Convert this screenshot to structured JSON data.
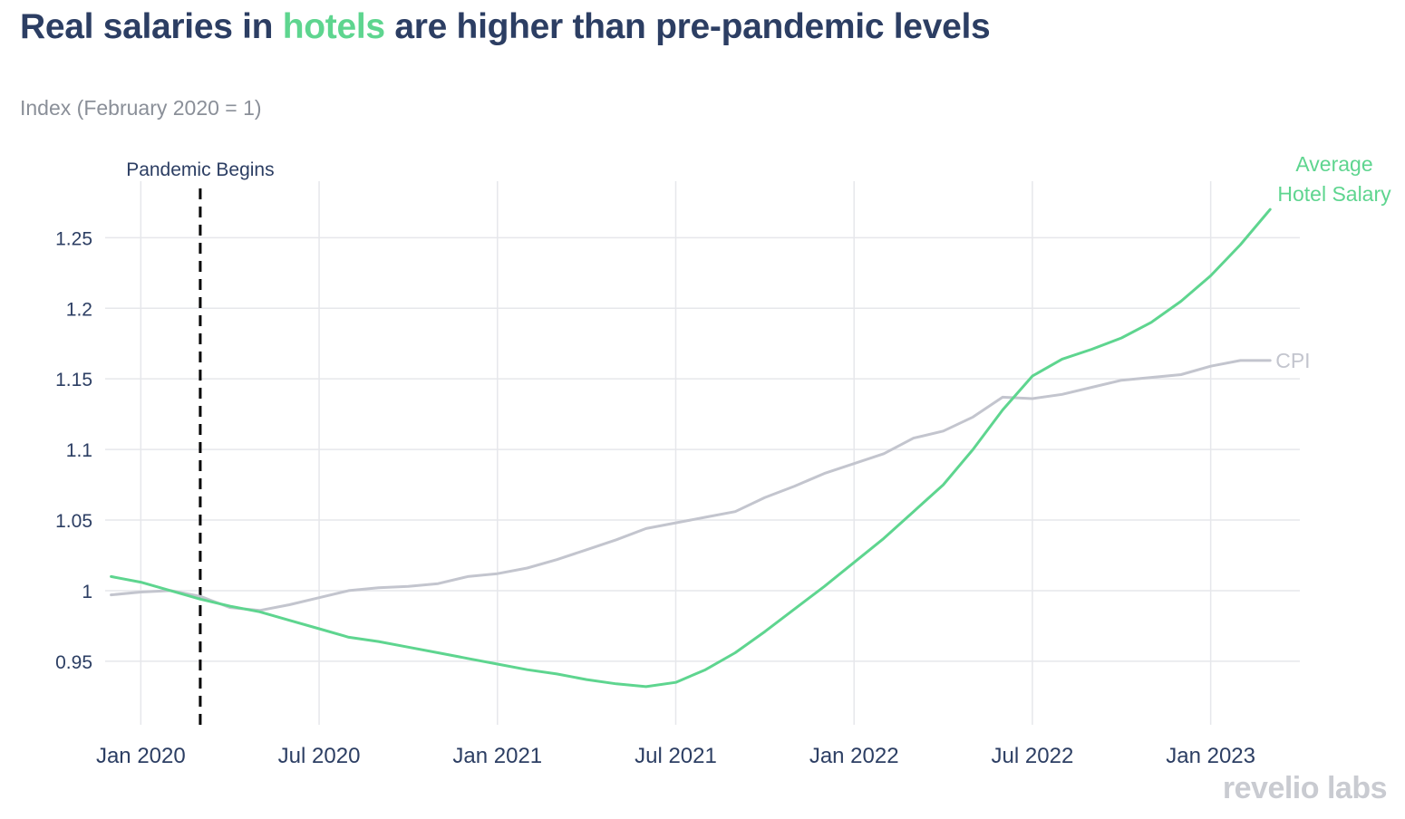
{
  "header": {
    "title_before": "Real salaries in ",
    "title_highlight": "hotels",
    "title_after": " are higher than pre-pandemic levels",
    "subtitle": "Index (February 2020 = 1)"
  },
  "brand": {
    "text": "revelio labs"
  },
  "colors": {
    "title": "#2c3e63",
    "hotel": "#5ed58f",
    "cpi": "#c3c5ce",
    "grid": "#e6e7eb",
    "axis_text": "#2c3e63",
    "annotation": "#000000"
  },
  "chart_data": {
    "type": "line",
    "title": "Real salaries in hotels are higher than pre-pandemic levels",
    "ylabel": "Index (February 2020 = 1)",
    "xlabel": "",
    "x_unit": "months since Jan 2020",
    "xlim": [
      -1.2,
      39
    ],
    "ylim": [
      0.905,
      1.29
    ],
    "grid": true,
    "x_ticks": [
      {
        "value": 0,
        "label": "Jan 2020"
      },
      {
        "value": 6,
        "label": "Jul 2020"
      },
      {
        "value": 12,
        "label": "Jan 2021"
      },
      {
        "value": 18,
        "label": "Jul 2021"
      },
      {
        "value": 24,
        "label": "Jan 2022"
      },
      {
        "value": 30,
        "label": "Jul 2022"
      },
      {
        "value": 36,
        "label": "Jan 2023"
      }
    ],
    "y_ticks": [
      {
        "value": 0.95,
        "label": "0.95"
      },
      {
        "value": 1.0,
        "label": "1"
      },
      {
        "value": 1.05,
        "label": "1.05"
      },
      {
        "value": 1.1,
        "label": "1.1"
      },
      {
        "value": 1.15,
        "label": "1.15"
      },
      {
        "value": 1.2,
        "label": "1.2"
      },
      {
        "value": 1.25,
        "label": "1.25"
      }
    ],
    "annotation": {
      "x": 2,
      "label": "Pandemic Begins"
    },
    "series": [
      {
        "name": "Average Hotel Salary",
        "label_lines": [
          "Average",
          "Hotel Salary"
        ],
        "color_key": "hotel",
        "points": [
          [
            -1,
            1.01
          ],
          [
            0,
            1.006
          ],
          [
            1,
            1.0
          ],
          [
            2,
            0.994
          ],
          [
            3,
            0.989
          ],
          [
            4,
            0.985
          ],
          [
            5,
            0.979
          ],
          [
            6,
            0.973
          ],
          [
            7,
            0.967
          ],
          [
            8,
            0.964
          ],
          [
            9,
            0.96
          ],
          [
            10,
            0.956
          ],
          [
            11,
            0.952
          ],
          [
            12,
            0.948
          ],
          [
            13,
            0.944
          ],
          [
            14,
            0.941
          ],
          [
            15,
            0.937
          ],
          [
            16,
            0.934
          ],
          [
            17,
            0.932
          ],
          [
            18,
            0.935
          ],
          [
            19,
            0.944
          ],
          [
            20,
            0.956
          ],
          [
            21,
            0.971
          ],
          [
            22,
            0.987
          ],
          [
            23,
            1.003
          ],
          [
            24,
            1.02
          ],
          [
            25,
            1.037
          ],
          [
            26,
            1.056
          ],
          [
            27,
            1.075
          ],
          [
            28,
            1.1
          ],
          [
            29,
            1.128
          ],
          [
            30,
            1.152
          ],
          [
            31,
            1.164
          ],
          [
            32,
            1.171
          ],
          [
            33,
            1.179
          ],
          [
            34,
            1.19
          ],
          [
            35,
            1.205
          ],
          [
            36,
            1.223
          ],
          [
            37,
            1.245
          ],
          [
            38,
            1.27
          ]
        ]
      },
      {
        "name": "CPI",
        "label_lines": [
          "CPI"
        ],
        "color_key": "cpi",
        "points": [
          [
            -1,
            0.997
          ],
          [
            0,
            0.999
          ],
          [
            1,
            1.0
          ],
          [
            2,
            0.996
          ],
          [
            3,
            0.988
          ],
          [
            4,
            0.986
          ],
          [
            5,
            0.99
          ],
          [
            6,
            0.995
          ],
          [
            7,
            1.0
          ],
          [
            8,
            1.002
          ],
          [
            9,
            1.003
          ],
          [
            10,
            1.005
          ],
          [
            11,
            1.01
          ],
          [
            12,
            1.012
          ],
          [
            13,
            1.016
          ],
          [
            14,
            1.022
          ],
          [
            15,
            1.029
          ],
          [
            16,
            1.036
          ],
          [
            17,
            1.044
          ],
          [
            18,
            1.048
          ],
          [
            19,
            1.052
          ],
          [
            20,
            1.056
          ],
          [
            21,
            1.066
          ],
          [
            22,
            1.074
          ],
          [
            23,
            1.083
          ],
          [
            24,
            1.09
          ],
          [
            25,
            1.097
          ],
          [
            26,
            1.108
          ],
          [
            27,
            1.113
          ],
          [
            28,
            1.123
          ],
          [
            29,
            1.137
          ],
          [
            30,
            1.136
          ],
          [
            31,
            1.139
          ],
          [
            32,
            1.144
          ],
          [
            33,
            1.149
          ],
          [
            34,
            1.151
          ],
          [
            35,
            1.153
          ],
          [
            36,
            1.159
          ],
          [
            37,
            1.163
          ],
          [
            38,
            1.163
          ]
        ]
      }
    ]
  }
}
